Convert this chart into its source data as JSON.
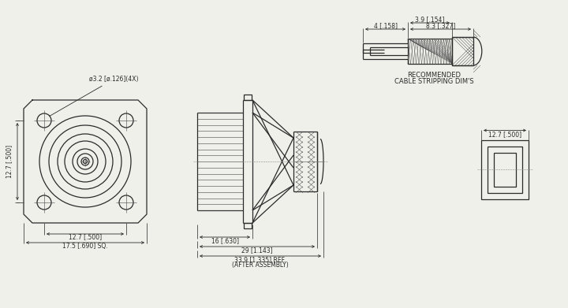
{
  "bg_color": "#f0f0eb",
  "line_color": "#2a2a2a",
  "dim_color": "#2a2a2a",
  "annotations": {
    "hole_label": "ø3.2 [ø.126](4X)",
    "dim_12_7_left": "12.7 [.500]",
    "dim_12_7_bottom": "12.7 [.500]",
    "dim_17_5": "17.5 [.690] SQ.",
    "dim_16": "16 [.630]",
    "dim_29": "29 [1.143]",
    "dim_33_9": "33.9 [1.335] REF.",
    "dim_after": "(AFTER ASSEMBLY)",
    "dim_12_7_right": "12.7 [.500]",
    "cable_label1": "RECOMMENDED",
    "cable_label2": "CABLE STRIPPING DIM'S",
    "dim_4": "4 [.158]",
    "dim_3_9": "3.9 [.154]",
    "dim_8_3": "8.3 [.327]"
  }
}
